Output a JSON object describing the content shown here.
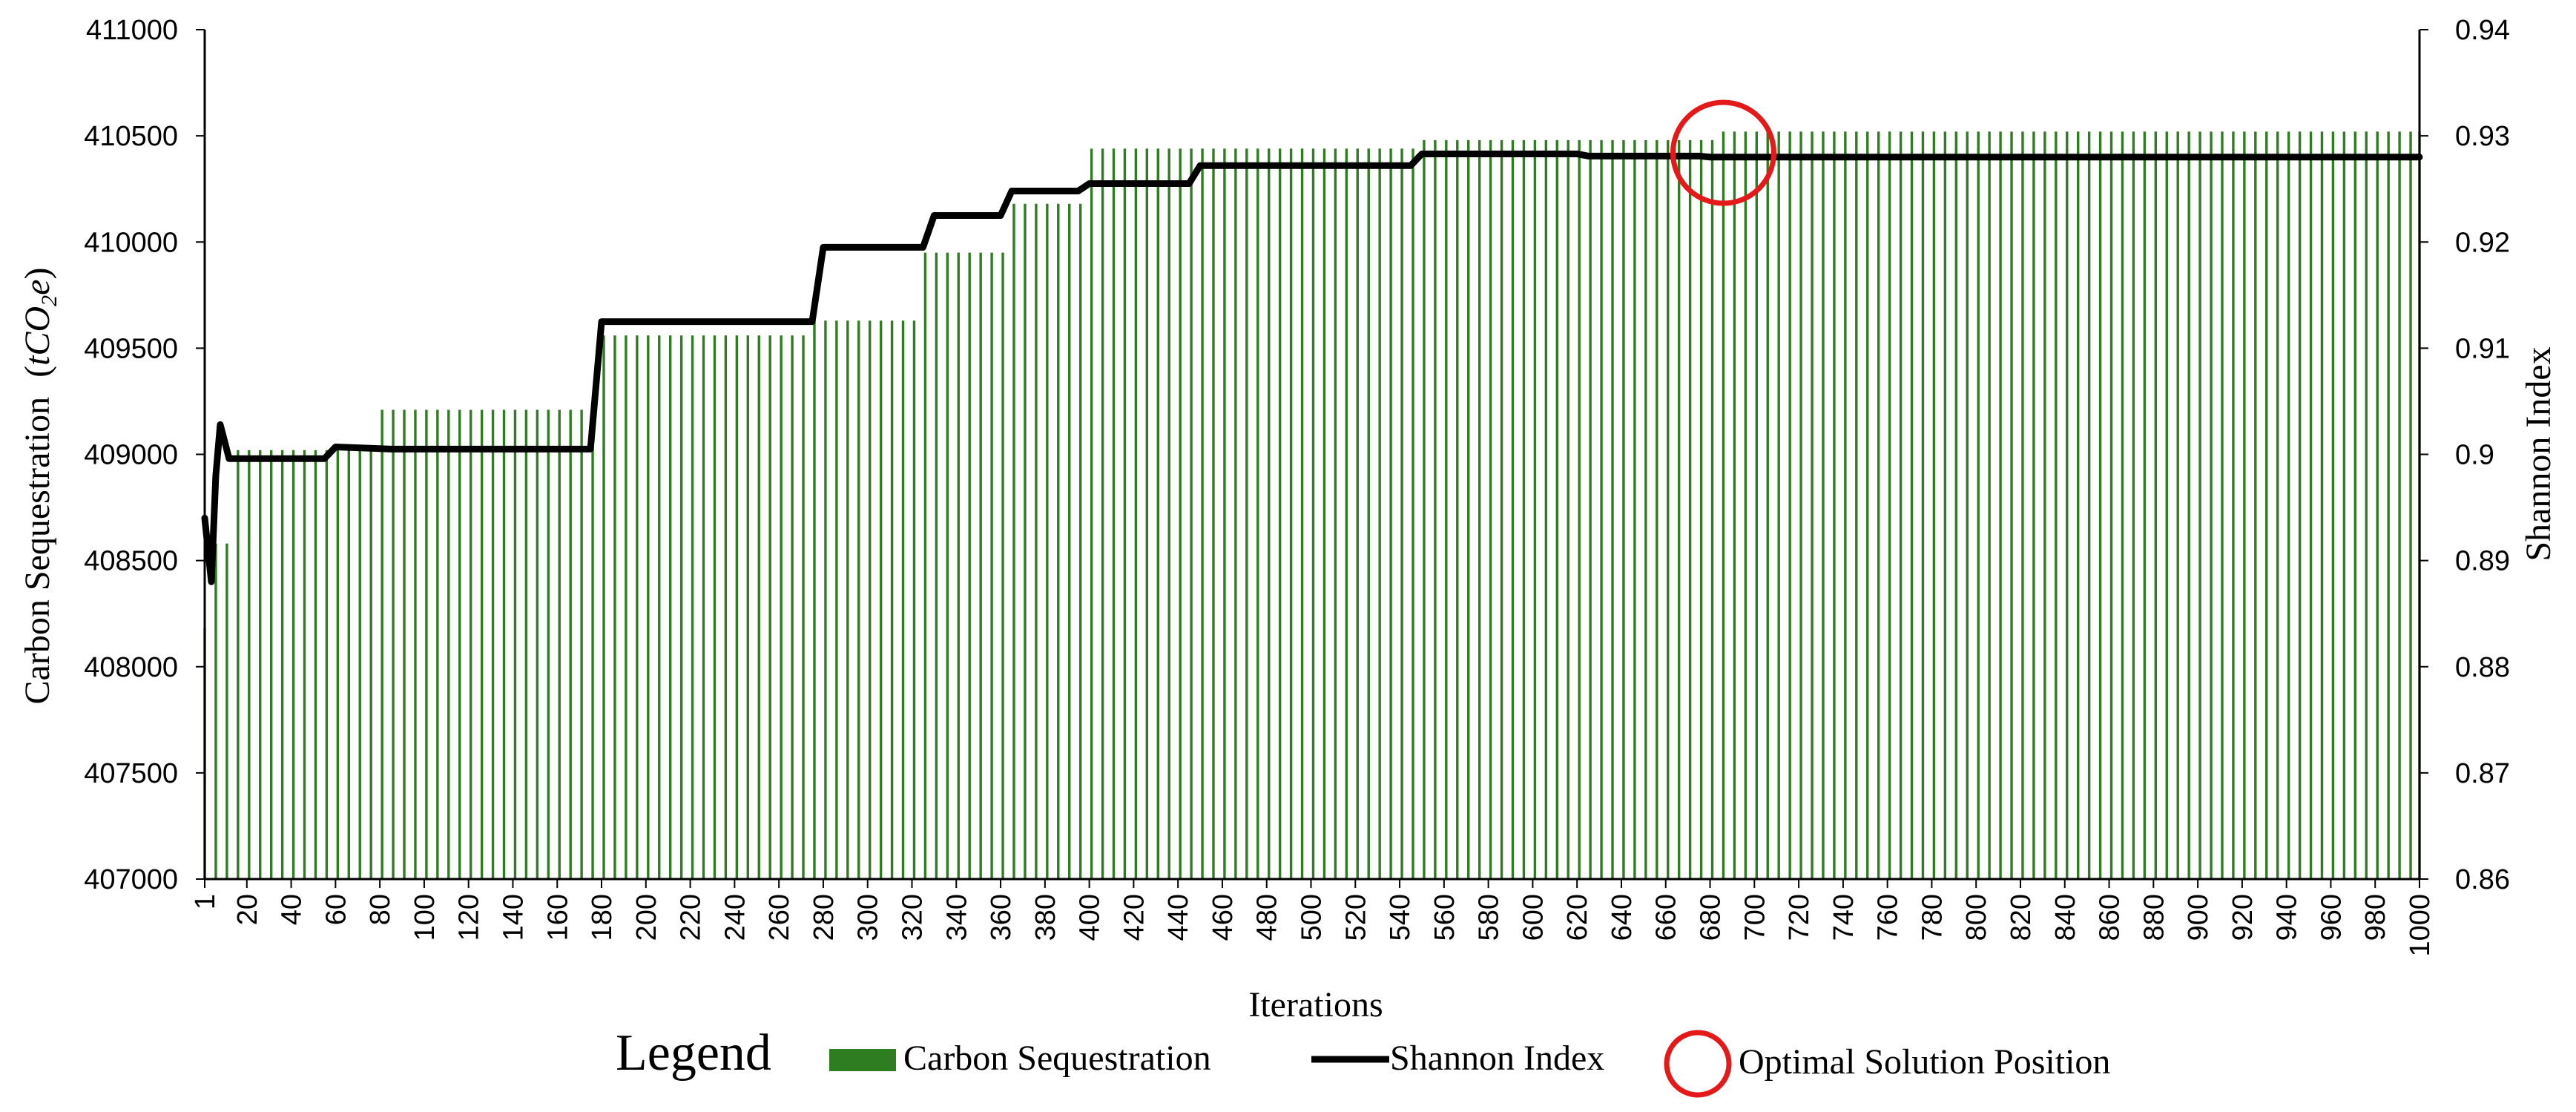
{
  "chart_data": {
    "type": "bar",
    "xlabel": "Iterations",
    "ylabel_left": "Carbon Sequestration",
    "ylabel_left_unit": {
      "prefix": "t",
      "main": "CO",
      "sub": "2",
      "suffix": "e"
    },
    "ylabel_right": "Shannon Index",
    "x_range": [
      1,
      1000
    ],
    "x_ticks": [
      1,
      20,
      40,
      60,
      80,
      100,
      120,
      140,
      160,
      180,
      200,
      220,
      240,
      260,
      280,
      300,
      320,
      340,
      360,
      380,
      400,
      420,
      440,
      460,
      480,
      500,
      520,
      540,
      560,
      580,
      600,
      620,
      640,
      660,
      680,
      700,
      720,
      740,
      760,
      780,
      800,
      820,
      840,
      860,
      880,
      900,
      920,
      940,
      960,
      980,
      1000
    ],
    "ylim_left": [
      407000,
      411000
    ],
    "y_ticks_left": [
      "407000",
      "407500",
      "408000",
      "408500",
      "409000",
      "409500",
      "410000",
      "410500",
      "411000"
    ],
    "ylim_right": [
      0.86,
      0.94
    ],
    "y_ticks_right": [
      "0.86",
      "0.87",
      "0.88",
      "0.89",
      "0.9",
      "0.91",
      "0.92",
      "0.93",
      "0.94"
    ],
    "grid": false,
    "legend_position": "bottom",
    "series": [
      {
        "name": "Carbon Sequestration",
        "kind": "bar",
        "axis": "left",
        "color": "#2e7d20",
        "bar_spacing": 5,
        "steps": [
          {
            "from": 1,
            "to": 4,
            "value": 408180
          },
          {
            "from": 5,
            "to": 11,
            "value": 408580
          },
          {
            "from": 12,
            "to": 80,
            "value": 409020
          },
          {
            "from": 81,
            "to": 178,
            "value": 409210
          },
          {
            "from": 179,
            "to": 275,
            "value": 409560
          },
          {
            "from": 276,
            "to": 325,
            "value": 409630
          },
          {
            "from": 326,
            "to": 362,
            "value": 409950
          },
          {
            "from": 363,
            "to": 398,
            "value": 410180
          },
          {
            "from": 399,
            "to": 548,
            "value": 410440
          },
          {
            "from": 549,
            "to": 685,
            "value": 410480
          },
          {
            "from": 686,
            "to": 1000,
            "value": 410520
          }
        ]
      },
      {
        "name": "Shannon Index",
        "kind": "line",
        "axis": "right",
        "color": "#000000",
        "x": [
          1,
          4,
          6,
          8,
          12,
          55,
          60,
          85,
          175,
          180,
          275,
          280,
          325,
          330,
          360,
          365,
          395,
          400,
          445,
          450,
          545,
          550,
          620,
          625,
          675,
          680,
          1000
        ],
        "y": [
          0.894,
          0.888,
          0.898,
          0.9028,
          0.8996,
          0.8996,
          0.9007,
          0.9005,
          0.9005,
          0.9125,
          0.9125,
          0.9195,
          0.9195,
          0.9225,
          0.9225,
          0.9248,
          0.9248,
          0.9255,
          0.9255,
          0.9272,
          0.9272,
          0.9283,
          0.9283,
          0.9281,
          0.9281,
          0.928,
          0.928
        ]
      }
    ],
    "annotations": [
      {
        "name": "Optimal Solution Position",
        "kind": "circle",
        "color": "#e41a1a",
        "x": 686,
        "y_left": 410420
      }
    ]
  },
  "legend": {
    "title": "Legend",
    "items": [
      {
        "label": "Carbon Sequestration",
        "kind": "bar",
        "color": "#2e7d20"
      },
      {
        "label": "Shannon Index",
        "kind": "line",
        "color": "#000000"
      },
      {
        "label": "Optimal Solution Position",
        "kind": "circle",
        "color": "#e41a1a"
      }
    ]
  }
}
